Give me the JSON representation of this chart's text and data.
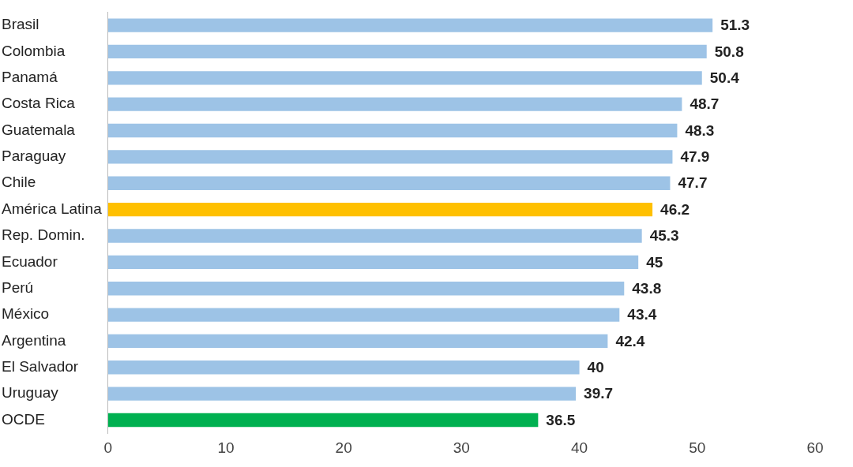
{
  "chart_data": {
    "type": "bar",
    "orientation": "horizontal",
    "categories": [
      "Brasil",
      "Colombia",
      "Panamá",
      "Costa Rica",
      "Guatemala",
      "Paraguay",
      "Chile",
      "América Latina",
      "Rep. Domin.",
      "Ecuador",
      "Perú",
      "México",
      "Argentina",
      "El Salvador",
      "Uruguay",
      "OCDE"
    ],
    "values": [
      51.3,
      50.8,
      50.4,
      48.7,
      48.3,
      47.9,
      47.7,
      46.2,
      45.3,
      45,
      43.8,
      43.4,
      42.4,
      40,
      39.7,
      36.5
    ],
    "colors": [
      "#9dc3e6",
      "#9dc3e6",
      "#9dc3e6",
      "#9dc3e6",
      "#9dc3e6",
      "#9dc3e6",
      "#9dc3e6",
      "#ffc000",
      "#9dc3e6",
      "#9dc3e6",
      "#9dc3e6",
      "#9dc3e6",
      "#9dc3e6",
      "#9dc3e6",
      "#9dc3e6",
      "#00b050"
    ],
    "xlim": [
      0,
      60
    ],
    "xticks": [
      0,
      10,
      20,
      30,
      40,
      50,
      60
    ],
    "data_labels": true,
    "grid": false,
    "legend": false
  }
}
